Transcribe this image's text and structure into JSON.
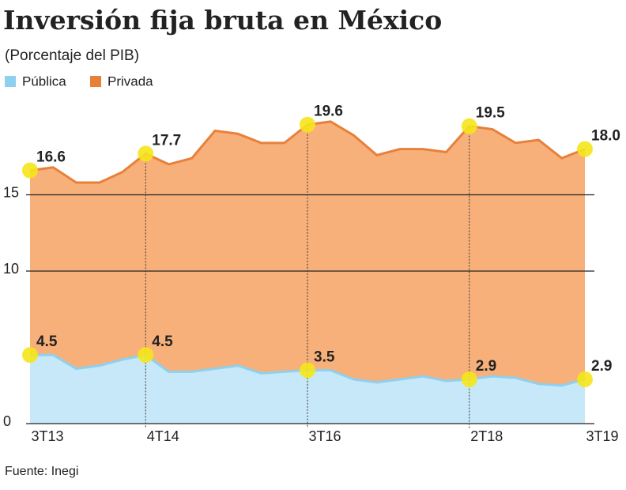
{
  "chart_data": {
    "type": "area",
    "title": "Inversión fija bruta en México",
    "subtitle": "(Porcentaje del PIB)",
    "source": "Fuente: Inegi",
    "categories": [
      "3T13",
      null,
      null,
      null,
      null,
      "4T14",
      null,
      null,
      null,
      null,
      null,
      null,
      "3T16",
      null,
      null,
      null,
      null,
      null,
      null,
      "2T18",
      null,
      null,
      null,
      null,
      "3T19"
    ],
    "series": [
      {
        "name": "Pública",
        "color": "#c7e8f8",
        "line_color": "#8fd0ef",
        "values": [
          4.5,
          4.5,
          3.6,
          3.8,
          4.2,
          4.5,
          3.4,
          3.4,
          3.6,
          3.8,
          3.3,
          3.4,
          3.5,
          3.5,
          2.9,
          2.7,
          2.9,
          3.1,
          2.8,
          2.9,
          3.1,
          3.0,
          2.6,
          2.5,
          2.9
        ],
        "value_labels": [
          "4.5",
          null,
          null,
          null,
          null,
          "4.5",
          null,
          null,
          null,
          null,
          null,
          null,
          "3.5",
          null,
          null,
          null,
          null,
          null,
          null,
          "2.9",
          null,
          null,
          null,
          null,
          "2.9"
        ]
      },
      {
        "name": "Privada",
        "color": "#f7b07a",
        "line_color": "#e8803a",
        "values": [
          16.6,
          16.8,
          15.8,
          15.8,
          16.5,
          17.7,
          17.0,
          17.4,
          19.2,
          19.0,
          18.4,
          18.4,
          19.6,
          19.8,
          18.9,
          17.6,
          18.0,
          18.0,
          17.8,
          19.5,
          19.3,
          18.4,
          18.6,
          17.4,
          18.0
        ],
        "value_labels": [
          "16.6",
          null,
          null,
          null,
          null,
          "17.7",
          null,
          null,
          null,
          null,
          null,
          null,
          "19.6",
          null,
          null,
          null,
          null,
          null,
          null,
          "19.5",
          null,
          null,
          null,
          null,
          "18.0"
        ]
      }
    ],
    "ylim": [
      0,
      20
    ],
    "yticks": [
      0,
      10,
      15
    ],
    "grid": true,
    "highlight_color": "#f5e61a"
  }
}
